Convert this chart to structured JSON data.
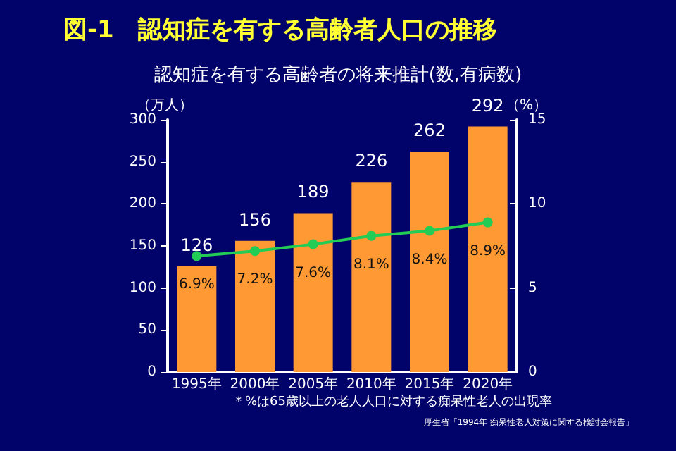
{
  "chart_data": {
    "type": "bar",
    "title": "図-1　認知症を有する高齢者人口の推移",
    "subtitle": "認知症を有する高齢者の将来推計(数,有病数)",
    "ylabel": "（万人）",
    "y2label": "（%）",
    "categories": [
      "1995年",
      "2000年",
      "2005年",
      "2010年",
      "2015年",
      "2020年"
    ],
    "series": [
      {
        "color": "#ff9933",
        "values": [
          126,
          156,
          189,
          226,
          262,
          292
        ],
        "value_labels": [
          "126",
          "156",
          "189",
          "226",
          "262",
          "292"
        ]
      },
      {
        "type": "line",
        "axis": "y2",
        "color": "#22cc55",
        "values": [
          6.9,
          7.2,
          7.6,
          8.1,
          8.4,
          8.9
        ],
        "value_labels": [
          "6.9%",
          "7.2%",
          "7.6%",
          "8.1%",
          "8.4%",
          "8.9%"
        ]
      }
    ],
    "ylim": [
      0,
      300
    ],
    "yticks": [
      0,
      50,
      100,
      150,
      200,
      250,
      300
    ],
    "y2lim": [
      0,
      15
    ],
    "y2ticks": [
      0,
      5,
      10,
      15
    ],
    "marker": "circle",
    "grid": false,
    "annotations": [
      "＊%は65歳以上の老人人口に対する痴呆性老人の出現率",
      "厚生省「1994年 痴呆性老人対策に関する検討会報告」"
    ]
  }
}
